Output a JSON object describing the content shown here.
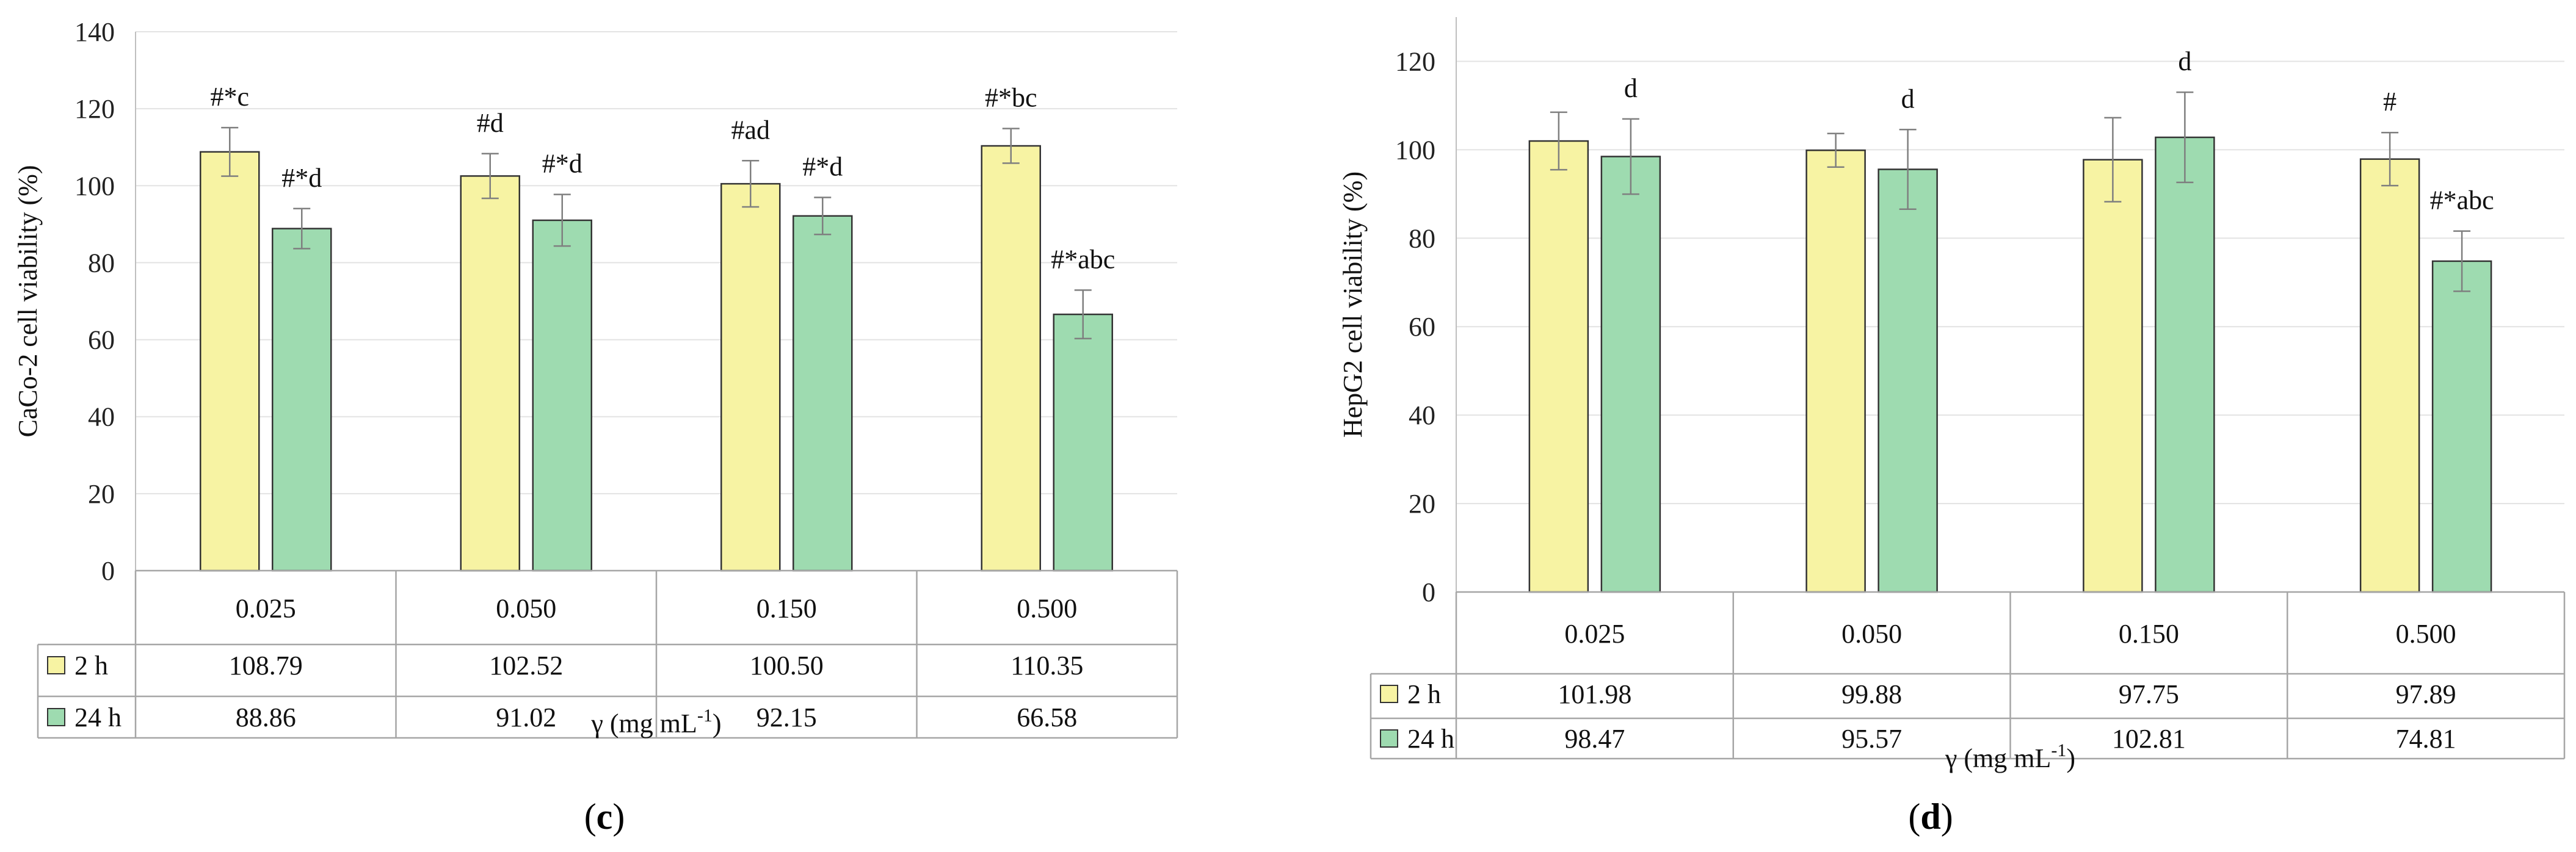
{
  "chart_data": [
    {
      "type": "bar",
      "categories": [
        "0.025",
        "0.050",
        "0.150",
        "0.500"
      ],
      "series": [
        {
          "name": "2 h",
          "values": [
            108.79,
            102.52,
            100.5,
            110.35
          ],
          "errors": [
            6.3,
            5.8,
            6.0,
            4.5
          ],
          "color": "#f7f3a3",
          "annotations": [
            "#*c",
            "#d",
            "#ad",
            "#*bc"
          ],
          "display": [
            "108.79",
            "102.52",
            "100.50",
            "110.35"
          ]
        },
        {
          "name": "24 h",
          "values": [
            88.86,
            91.02,
            92.15,
            66.58
          ],
          "errors": [
            5.2,
            6.7,
            4.8,
            6.3
          ],
          "color": "#9edbb0",
          "annotations": [
            "#*d",
            "#*d",
            "#*d",
            "#*abc"
          ],
          "display": [
            "88.86",
            "91.02",
            "92.15",
            "66.58"
          ]
        }
      ],
      "ylabel": "CaCo-2 cell viability (%)",
      "xlabel": "γ  (mg mL",
      "xlabel_sup": "-1",
      "xlabel_end": ")",
      "ylim": [
        0,
        140
      ],
      "yticks": [
        "0",
        "20",
        "40",
        "60",
        "80",
        "100",
        "120",
        "140"
      ],
      "grid": true,
      "panel_label_open": "(",
      "panel_label": "c",
      "panel_label_close": ")"
    },
    {
      "type": "bar",
      "categories": [
        "0.025",
        "0.050",
        "0.150",
        "0.500"
      ],
      "series": [
        {
          "name": "2 h",
          "values": [
            101.98,
            99.88,
            97.75,
            97.89
          ],
          "errors": [
            6.5,
            3.8,
            9.5,
            6.0
          ],
          "color": "#f7f3a3",
          "annotations": [
            "",
            "",
            "",
            "#"
          ],
          "display": [
            "101.98",
            "99.88",
            "97.75",
            "97.89"
          ]
        },
        {
          "name": "24 h",
          "values": [
            98.47,
            95.57,
            102.81,
            74.81
          ],
          "errors": [
            8.5,
            9.0,
            10.2,
            6.8
          ],
          "color": "#9edbb0",
          "annotations": [
            "d",
            "d",
            "d",
            "#*abc"
          ],
          "display": [
            "98.47",
            "95.57",
            "102.81",
            "74.81"
          ]
        }
      ],
      "ylabel": "HepG2 cell viability (%)",
      "xlabel": "γ (mg mL",
      "xlabel_sup": "-1",
      "xlabel_end": ")",
      "ylim": [
        0,
        130
      ],
      "yticks": [
        "0",
        "20",
        "40",
        "60",
        "80",
        "100",
        "120"
      ],
      "grid": true,
      "panel_label_open": "(",
      "panel_label": "d",
      "panel_label_close": ")"
    }
  ]
}
